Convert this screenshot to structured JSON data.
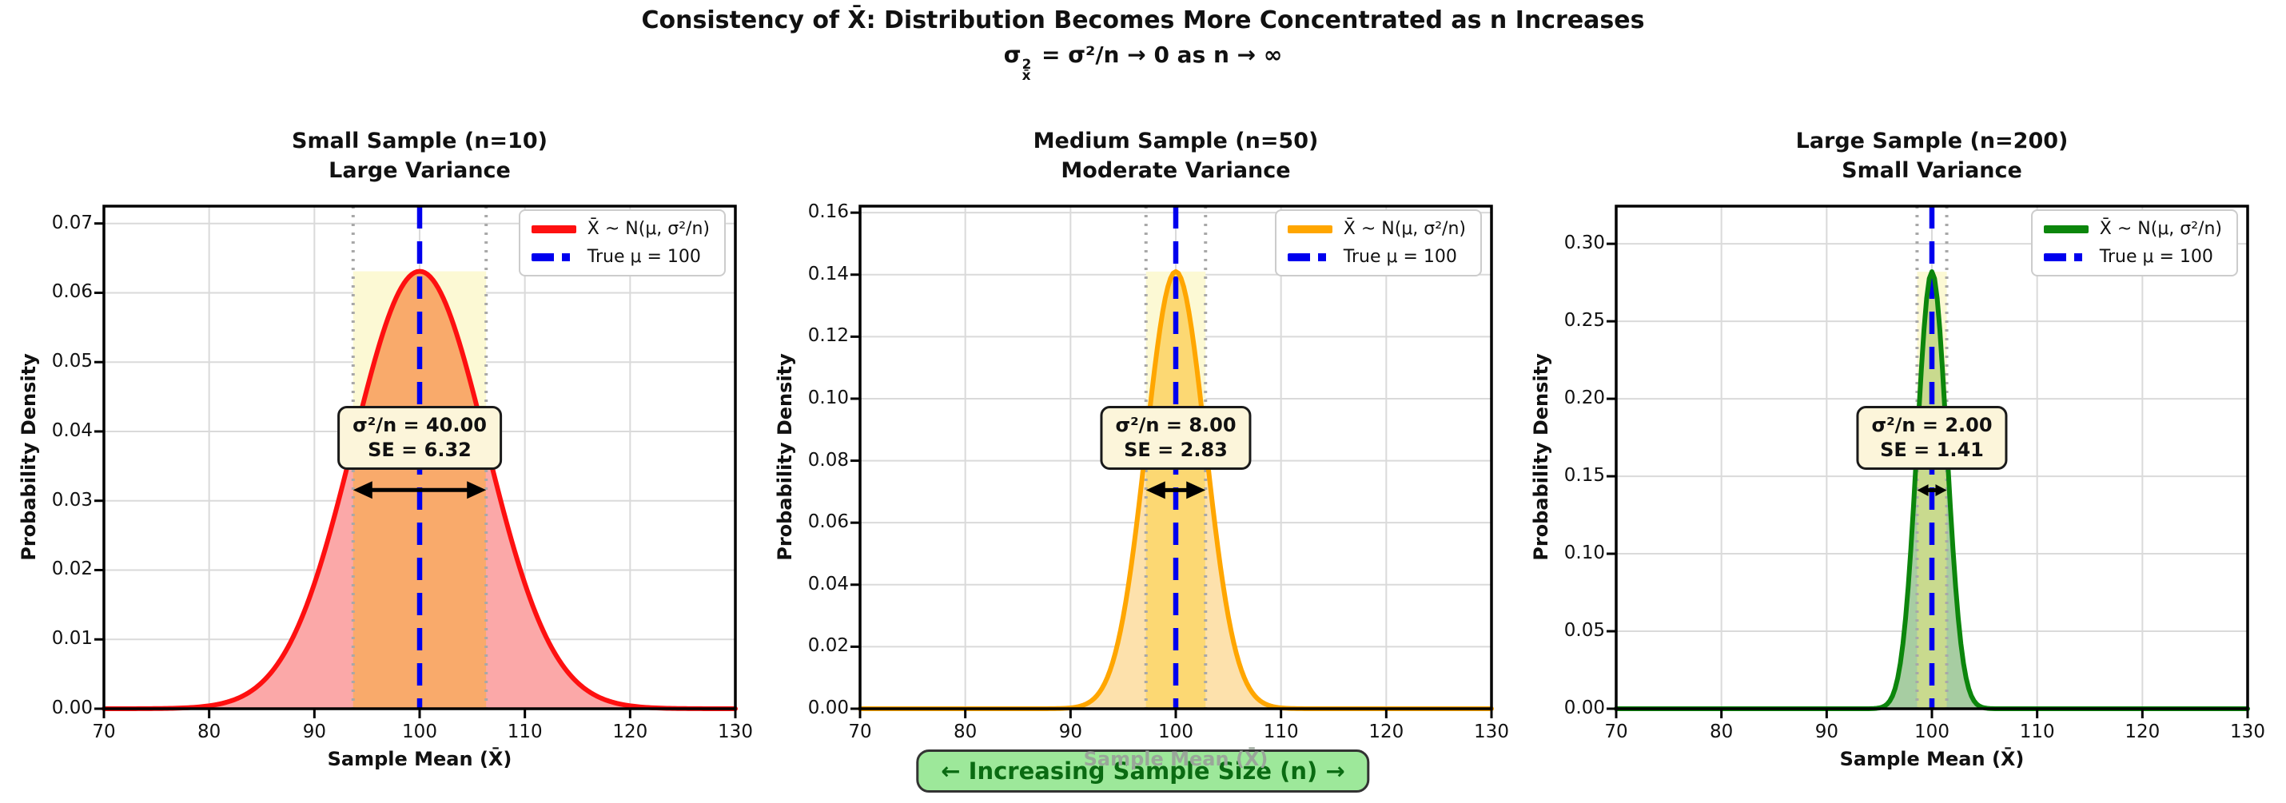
{
  "title": {
    "line1": "Consistency of X̄: Distribution Becomes More Concentrated as n Increases",
    "math": {
      "base": "σ",
      "sup": "2",
      "sub": "x̄",
      "rest": " = σ²/n → 0 as n → ∞",
      "plain": "σ²x̄ = σ²/n → 0 as n → ∞"
    }
  },
  "banner": {
    "text": "← Increasing Sample Size (n) →"
  },
  "chart_data": [
    {
      "type": "area",
      "name": "small-sample",
      "title_line1": "Small Sample (n=10)",
      "title_line2": "Large Variance",
      "n": 10,
      "mu": 100,
      "variance_over_n": 40.0,
      "se": 6.32,
      "peak_density": 0.0631,
      "xlabel": "Sample Mean (X̄)",
      "ylabel": "Probability Density",
      "xlim": [
        70,
        130
      ],
      "ylim": [
        0,
        0.0725
      ],
      "xticks": [
        70,
        80,
        90,
        100,
        110,
        120,
        130
      ],
      "ytick_labels": [
        "0.00",
        "0.01",
        "0.02",
        "0.03",
        "0.04",
        "0.05",
        "0.06",
        "0.07"
      ],
      "legend": [
        {
          "label": "X̄ ~ N(μ, σ²/n)",
          "style": "solid"
        },
        {
          "label": "True μ = 100",
          "style": "dashed"
        }
      ],
      "annotation_line1": "σ²/n = 40.00",
      "annotation_line2": "SE = 6.32",
      "grid": true,
      "colors": {
        "curve": "#fe1010",
        "fill_inside": "#f9aa6b",
        "fill_outside": "#fba8a8",
        "band": "#fcf9d4",
        "mu_line": "#0000ee",
        "se_line": "#a8a8a8",
        "arrow": "#000000"
      }
    },
    {
      "type": "area",
      "name": "medium-sample",
      "title_line1": "Medium Sample (n=50)",
      "title_line2": "Moderate Variance",
      "n": 50,
      "mu": 100,
      "variance_over_n": 8.0,
      "se": 2.83,
      "peak_density": 0.141,
      "xlabel": "Sample Mean (X̄)",
      "ylabel": "Probability Density",
      "xlim": [
        70,
        130
      ],
      "ylim": [
        0,
        0.1621
      ],
      "xticks": [
        70,
        80,
        90,
        100,
        110,
        120,
        130
      ],
      "ytick_labels": [
        "0.00",
        "0.02",
        "0.04",
        "0.06",
        "0.08",
        "0.10",
        "0.12",
        "0.14",
        "0.16"
      ],
      "legend": [
        {
          "label": "X̄ ~ N(μ, σ²/n)",
          "style": "solid"
        },
        {
          "label": "True μ = 100",
          "style": "dashed"
        }
      ],
      "annotation_line1": "σ²/n = 8.00",
      "annotation_line2": "SE = 2.83",
      "grid": true,
      "colors": {
        "curve": "#ffa600",
        "fill_inside": "#fcd873",
        "fill_outside": "#fde1ac",
        "band": "#fcf9d4",
        "mu_line": "#0000ee",
        "se_line": "#a8a8a8",
        "arrow": "#000000"
      }
    },
    {
      "type": "area",
      "name": "large-sample",
      "title_line1": "Large Sample (n=200)",
      "title_line2": "Small Variance",
      "n": 200,
      "mu": 100,
      "variance_over_n": 2.0,
      "se": 1.41,
      "peak_density": 0.282,
      "xlabel": "Sample Mean (X̄)",
      "ylabel": "Probability Density",
      "xlim": [
        70,
        130
      ],
      "ylim": [
        0,
        0.3243
      ],
      "xticks": [
        70,
        80,
        90,
        100,
        110,
        120,
        130
      ],
      "ytick_labels": [
        "0.00",
        "0.05",
        "0.10",
        "0.15",
        "0.20",
        "0.25",
        "0.30"
      ],
      "legend": [
        {
          "label": "X̄ ~ N(μ, σ²/n)",
          "style": "solid"
        },
        {
          "label": "True μ = 100",
          "style": "dashed"
        }
      ],
      "annotation_line1": "σ²/n = 2.00",
      "annotation_line2": "SE = 1.41",
      "grid": true,
      "colors": {
        "curve": "#0c860c",
        "fill_inside": "#c9da8e",
        "fill_outside": "#a7cda2",
        "band": "#fcf9d4",
        "mu_line": "#0000ee",
        "se_line": "#a8a8a8",
        "arrow": "#000000"
      }
    }
  ]
}
